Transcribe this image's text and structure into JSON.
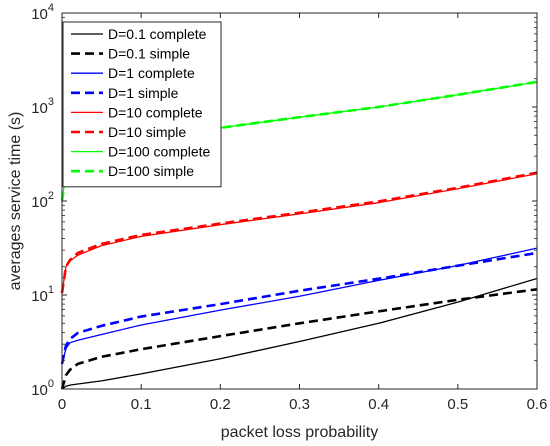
{
  "chart_data": {
    "type": "line",
    "xlabel": "packet loss probability",
    "ylabel": "averages service time (s)",
    "xlim": [
      0,
      0.6
    ],
    "ylim": [
      1,
      10000
    ],
    "yscale": "log",
    "grid": false,
    "legend_position": "top-left",
    "x_ticks": [
      {
        "value": 0,
        "label": "0"
      },
      {
        "value": 0.1,
        "label": "0.1"
      },
      {
        "value": 0.2,
        "label": "0.2"
      },
      {
        "value": 0.3,
        "label": "0.3"
      },
      {
        "value": 0.4,
        "label": "0.4"
      },
      {
        "value": 0.5,
        "label": "0.5"
      },
      {
        "value": 0.6,
        "label": "0.6"
      }
    ],
    "y_ticks": [
      {
        "value": 1,
        "base": "10",
        "exp": "0"
      },
      {
        "value": 10,
        "base": "10",
        "exp": "1"
      },
      {
        "value": 100,
        "base": "10",
        "exp": "2"
      },
      {
        "value": 1000,
        "base": "10",
        "exp": "3"
      },
      {
        "value": 10000,
        "base": "10",
        "exp": "4"
      }
    ],
    "series": [
      {
        "name": "D=0.1 complete",
        "color": "#000000",
        "dash": "solid",
        "x": [
          0,
          0.005,
          0.01,
          0.02,
          0.05,
          0.1,
          0.2,
          0.3,
          0.4,
          0.5,
          0.6
        ],
        "y": [
          1.0,
          1.07,
          1.1,
          1.13,
          1.22,
          1.45,
          2.1,
          3.2,
          5.0,
          8.4,
          15.0
        ]
      },
      {
        "name": "D=0.1 simple",
        "color": "#000000",
        "dash": "dashed",
        "x": [
          0,
          0.005,
          0.01,
          0.02,
          0.05,
          0.1,
          0.2,
          0.3,
          0.4,
          0.5,
          0.6
        ],
        "y": [
          1.0,
          1.4,
          1.6,
          1.85,
          2.2,
          2.65,
          3.65,
          5.0,
          6.7,
          8.9,
          11.5
        ]
      },
      {
        "name": "D=1 complete",
        "color": "#0000ff",
        "dash": "solid",
        "x": [
          0,
          0.005,
          0.01,
          0.02,
          0.05,
          0.1,
          0.2,
          0.3,
          0.4,
          0.5,
          0.6
        ],
        "y": [
          1.85,
          2.7,
          3.1,
          3.3,
          3.8,
          4.8,
          6.9,
          9.7,
          14.3,
          20.6,
          31.5
        ]
      },
      {
        "name": "D=1 simple",
        "color": "#0000ff",
        "dash": "dashed",
        "x": [
          0,
          0.005,
          0.01,
          0.02,
          0.05,
          0.1,
          0.2,
          0.3,
          0.4,
          0.5,
          0.6
        ],
        "y": [
          1.85,
          2.9,
          3.4,
          3.95,
          4.7,
          5.9,
          8.0,
          11.1,
          14.9,
          20.5,
          28.0
        ]
      },
      {
        "name": "D=10 complete",
        "color": "#ff0000",
        "dash": "solid",
        "x": [
          0,
          0.005,
          0.01,
          0.02,
          0.05,
          0.1,
          0.2,
          0.3,
          0.4,
          0.5,
          0.6
        ],
        "y": [
          10.5,
          20.0,
          23.0,
          26.5,
          33.5,
          42.0,
          56.0,
          73.0,
          96.0,
          135.0,
          195.0
        ]
      },
      {
        "name": "D=10 simple",
        "color": "#ff0000",
        "dash": "dashed",
        "x": [
          0,
          0.005,
          0.01,
          0.02,
          0.05,
          0.1,
          0.2,
          0.3,
          0.4,
          0.5,
          0.6
        ],
        "y": [
          10.5,
          20.0,
          23.5,
          28.0,
          35.0,
          43.5,
          57.5,
          75.0,
          99.0,
          138.0,
          200.0
        ]
      },
      {
        "name": "D=100 complete",
        "color": "#00ff00",
        "dash": "solid",
        "x": [
          0,
          0.005,
          0.01,
          0.02,
          0.05,
          0.1,
          0.2,
          0.3,
          0.4,
          0.5,
          0.6
        ],
        "y": [
          100,
          200,
          240,
          290,
          350,
          430,
          600,
          780,
          1000,
          1350,
          1850
        ]
      },
      {
        "name": "D=100 simple",
        "color": "#00ff00",
        "dash": "dashed",
        "x": [
          0,
          0.005,
          0.01,
          0.02,
          0.05,
          0.1,
          0.2,
          0.3,
          0.4,
          0.5,
          0.6
        ],
        "y": [
          100,
          200,
          240,
          290,
          350,
          430,
          600,
          780,
          1000,
          1350,
          1850
        ]
      }
    ]
  }
}
